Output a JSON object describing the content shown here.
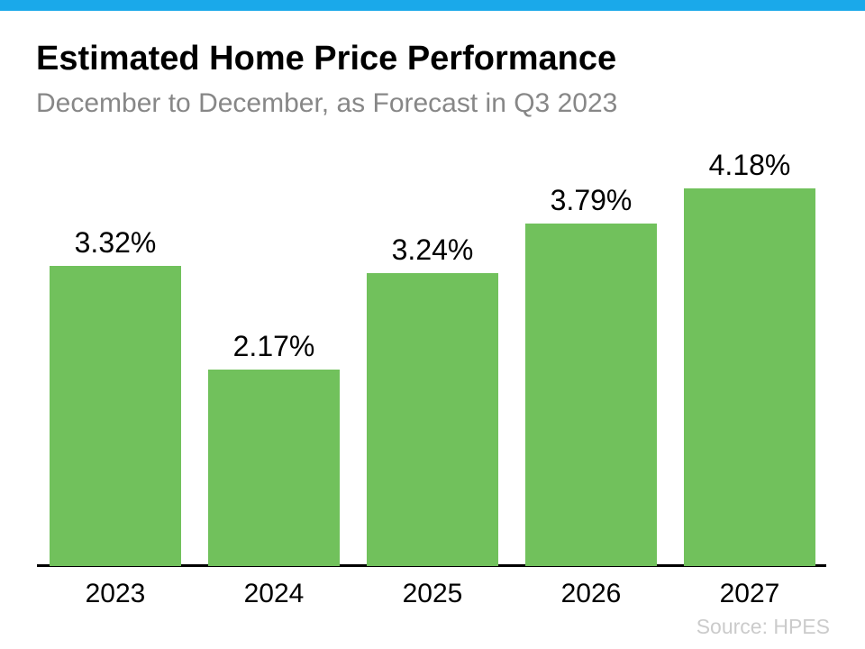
{
  "page": {
    "accent_bar_color": "#1AA9EA",
    "background_color": "#FFFFFF",
    "title": "Estimated Home Price Performance",
    "subtitle": "December to December, as Forecast in Q3 2023",
    "source": "Source: HPES"
  },
  "chart_data": {
    "type": "bar",
    "title": "Estimated Home Price Performance",
    "subtitle": "December to December, as Forecast in Q3 2023",
    "categories": [
      "2023",
      "2024",
      "2025",
      "2026",
      "2027"
    ],
    "values": [
      3.32,
      2.17,
      3.24,
      3.79,
      4.18
    ],
    "value_labels": [
      "3.32%",
      "2.17%",
      "3.24%",
      "3.79%",
      "4.18%"
    ],
    "xlabel": "",
    "ylabel": "",
    "ylim": [
      0,
      4.5
    ],
    "bar_color": "#71C15C",
    "axis_line_color": "#000000",
    "grid": false,
    "legend": false,
    "data_labels_position": "above-bars",
    "source": "Source: HPES"
  }
}
